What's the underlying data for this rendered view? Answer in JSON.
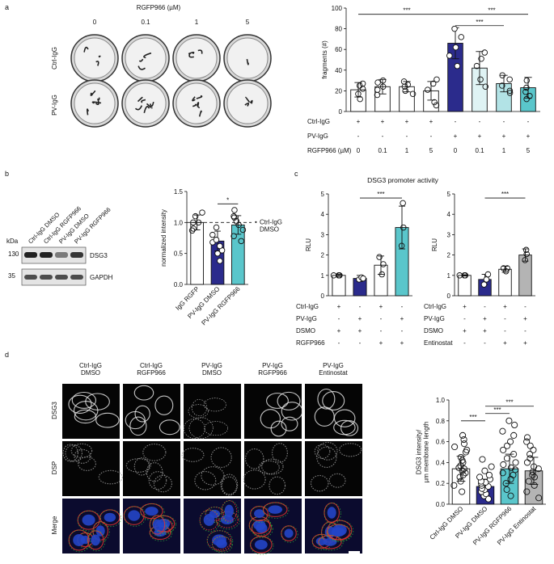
{
  "panels": {
    "a": "a",
    "b": "b",
    "c": "c",
    "d": "d"
  },
  "colors": {
    "ctrl": "#ffffff",
    "pv_dmso": "#2b2b8c",
    "pv_rgfp_light": "#dff3f4",
    "pv_rgfp_mid": "#b2e3e6",
    "pv_rgfp_teal": "#5ac6cb",
    "entinostat": "#b4b4b4",
    "wb_band": "#222222",
    "fluor_green": "#2fbf3a",
    "fluor_red": "#e2362b",
    "fluor_blue": "#2345c8"
  },
  "panel_a": {
    "header": "RGFP966 (µM)",
    "concentrations": [
      "0",
      "0.1",
      "1",
      "5"
    ],
    "row_labels": [
      "Ctrl-IgG",
      "PV-IgG"
    ]
  },
  "panel_b": {
    "blot_lanes": [
      "Ctrl-IgG DMSO",
      "Ctrl-IgG RGFP966",
      "PV-IgG DMSO",
      "PV-IgG RGFP966"
    ],
    "kda_label": "kDa",
    "markers": [
      "130",
      "35"
    ],
    "bands": [
      "DSG3",
      "GAPDH"
    ]
  },
  "panel_d": {
    "columns": [
      "Ctrl-IgG\nDMSO",
      "Ctrl-IgG\nRGFP966",
      "PV-IgG\nDMSO",
      "PV-IgG\nRGFP966",
      "PV-IgG\nEntinostat"
    ],
    "rows": [
      "DSG3",
      "DSP",
      "Merge"
    ]
  },
  "chart_data": [
    {
      "id": "a_bar",
      "type": "bar",
      "ylabel": "fragments (#)",
      "ylim": [
        0,
        100
      ],
      "yticks": [
        0,
        20,
        40,
        60,
        80,
        100
      ],
      "values": [
        21,
        24,
        24,
        20,
        66,
        42,
        27,
        23
      ],
      "errors": [
        7,
        7,
        5,
        9,
        15,
        16,
        8,
        10
      ],
      "points": [
        [
          12,
          17,
          22,
          25,
          27
        ],
        [
          16,
          21,
          24,
          28,
          30
        ],
        [
          17,
          20,
          24,
          26,
          29
        ],
        [
          6,
          9,
          21,
          27,
          31
        ],
        [
          44,
          54,
          62,
          72,
          80
        ],
        [
          24,
          31,
          44,
          51,
          57
        ],
        [
          18,
          20,
          25,
          31,
          35
        ],
        [
          12,
          15,
          19,
          23,
          30
        ]
      ],
      "colors": [
        "#ffffff",
        "#ffffff",
        "#ffffff",
        "#ffffff",
        "#2b2b8c",
        "#dff3f4",
        "#b2e3e6",
        "#5ac6cb"
      ],
      "condition_rows": [
        {
          "label": "Ctrl-IgG",
          "values": [
            "+",
            "+",
            "+",
            "+",
            "-",
            "-",
            "-",
            "-"
          ]
        },
        {
          "label": "PV-IgG",
          "values": [
            "-",
            "-",
            "-",
            "-",
            "+",
            "+",
            "+",
            "+"
          ]
        },
        {
          "label": "RGFP966 (µM)",
          "values": [
            "0",
            "0.1",
            "1",
            "5",
            "0",
            "0.1",
            "1",
            "5"
          ]
        }
      ],
      "significance": [
        {
          "from": 0,
          "to": 4,
          "label": "***",
          "level": 94
        },
        {
          "from": 4,
          "to": 7,
          "label": "***",
          "level": 94
        },
        {
          "from": 4,
          "to": 6,
          "label": "***",
          "level": 83
        }
      ]
    },
    {
      "id": "b_bar",
      "type": "bar",
      "ylabel": "normalized intensity",
      "ylim": [
        0,
        1.5
      ],
      "yticks": [
        "0.0",
        "0.5",
        "1.0",
        "1.5"
      ],
      "categories": [
        "IgG RGFP",
        "PV-IgG DMSO",
        "PV-IgG RGFP966"
      ],
      "values": [
        1.0,
        0.7,
        0.96
      ],
      "errors": [
        0.12,
        0.16,
        0.15
      ],
      "points": [
        [
          0.87,
          0.9,
          1.0,
          1.0,
          1.1,
          1.16
        ],
        [
          0.38,
          0.5,
          0.55,
          0.62,
          0.68,
          0.72,
          0.8,
          0.92
        ],
        [
          0.7,
          0.78,
          0.88,
          0.96,
          1.02,
          1.08,
          1.1,
          1.2
        ]
      ],
      "colors": [
        "#ffffff",
        "#2b2b8c",
        "#5ac6cb"
      ],
      "reference_line": {
        "value": 1.0,
        "label": "Ctrl-IgG\nDMSO"
      },
      "significance": [
        {
          "from": 1,
          "to": 2,
          "label": "*",
          "level": 1.3
        }
      ]
    },
    {
      "id": "c_left",
      "type": "bar",
      "title": "DSG3 promoter activity",
      "ylabel": "RLU",
      "ylim": [
        0,
        5
      ],
      "yticks": [
        0,
        1,
        2,
        3,
        4,
        5
      ],
      "values": [
        1.0,
        0.85,
        1.5,
        3.35
      ],
      "errors": [
        0.05,
        0.15,
        0.45,
        1.05
      ],
      "points": [
        [
          1.0,
          1.0,
          1.0
        ],
        [
          0.8,
          0.9,
          0.85
        ],
        [
          1.05,
          1.55,
          1.9
        ],
        [
          2.45,
          3.35,
          4.55
        ]
      ],
      "colors": [
        "#ffffff",
        "#2b2b8c",
        "#ffffff",
        "#5ac6cb"
      ],
      "condition_rows": [
        {
          "label": "Ctrl-IgG",
          "values": [
            "+",
            "-",
            "+",
            "-"
          ]
        },
        {
          "label": "PV-IgG",
          "values": [
            "-",
            "+",
            "-",
            "+"
          ]
        },
        {
          "label": "DSMO",
          "values": [
            "+",
            "+",
            "-",
            "-"
          ]
        },
        {
          "label": "RGFP966",
          "values": [
            "-",
            "-",
            "+",
            "+"
          ]
        }
      ],
      "significance": [
        {
          "from": 1,
          "to": 3,
          "label": "***",
          "level": 4.8
        }
      ]
    },
    {
      "id": "c_right",
      "type": "bar",
      "ylabel": "RLU",
      "ylim": [
        0,
        5
      ],
      "yticks": [
        0,
        1,
        2,
        3,
        4,
        5
      ],
      "values": [
        1.0,
        0.8,
        1.3,
        2.0
      ],
      "errors": [
        0.03,
        0.25,
        0.15,
        0.3
      ],
      "points": [
        [
          1.0,
          1.0,
          1.0
        ],
        [
          0.55,
          0.8,
          1.05
        ],
        [
          1.2,
          1.35,
          1.35
        ],
        [
          1.75,
          2.05,
          2.25
        ]
      ],
      "colors": [
        "#ffffff",
        "#2b2b8c",
        "#ffffff",
        "#b4b4b4"
      ],
      "condition_rows": [
        {
          "label": "Ctrl-IgG",
          "values": [
            "+",
            "-",
            "+",
            "-"
          ]
        },
        {
          "label": "PV-IgG",
          "values": [
            "-",
            "+",
            "-",
            "+"
          ]
        },
        {
          "label": "DSMO",
          "values": [
            "+",
            "+",
            "-",
            "-"
          ]
        },
        {
          "label": "Entinostat",
          "values": [
            "-",
            "-",
            "+",
            "+"
          ]
        }
      ],
      "significance": [
        {
          "from": 1,
          "to": 3,
          "label": "***",
          "level": 4.8
        }
      ]
    },
    {
      "id": "d_bar",
      "type": "bar",
      "ylabel": "DSG3 intensity/\nµm membrane length",
      "ylim": [
        0,
        1.0
      ],
      "yticks": [
        "0.0",
        "0.2",
        "0.4",
        "0.6",
        "0.8",
        "1.0"
      ],
      "categories": [
        "Ctrl-IgG DMSO",
        "PV-IgG DMSO",
        "PV-IgG RGFP966",
        "PV-IgG Entinostat"
      ],
      "values": [
        0.34,
        0.17,
        0.34,
        0.32
      ],
      "errors": [
        0.12,
        0.07,
        0.14,
        0.13
      ],
      "points": [
        [
          0.12,
          0.18,
          0.22,
          0.26,
          0.28,
          0.3,
          0.32,
          0.34,
          0.35,
          0.37,
          0.4,
          0.42,
          0.45,
          0.5,
          0.52,
          0.55,
          0.58,
          0.62,
          0.66
        ],
        [
          0.05,
          0.08,
          0.1,
          0.12,
          0.14,
          0.15,
          0.17,
          0.18,
          0.2,
          0.21,
          0.22,
          0.24,
          0.26,
          0.28,
          0.32,
          0.36,
          0.43
        ],
        [
          0.08,
          0.14,
          0.2,
          0.24,
          0.28,
          0.3,
          0.33,
          0.35,
          0.38,
          0.4,
          0.44,
          0.48,
          0.52,
          0.56,
          0.6,
          0.66,
          0.7,
          0.76,
          0.8
        ],
        [
          0.06,
          0.12,
          0.18,
          0.22,
          0.26,
          0.28,
          0.31,
          0.34,
          0.36,
          0.4,
          0.44,
          0.48,
          0.52,
          0.56,
          0.6,
          0.64
        ]
      ],
      "colors": [
        "#ffffff",
        "#2b2b8c",
        "#5ac6cb",
        "#b4b4b4"
      ],
      "significance": [
        {
          "from": 0,
          "to": 1,
          "label": "***",
          "level": 0.8
        },
        {
          "from": 1,
          "to": 2,
          "label": "***",
          "level": 0.87
        },
        {
          "from": 1,
          "to": 3,
          "label": "***",
          "level": 0.94
        }
      ]
    }
  ]
}
